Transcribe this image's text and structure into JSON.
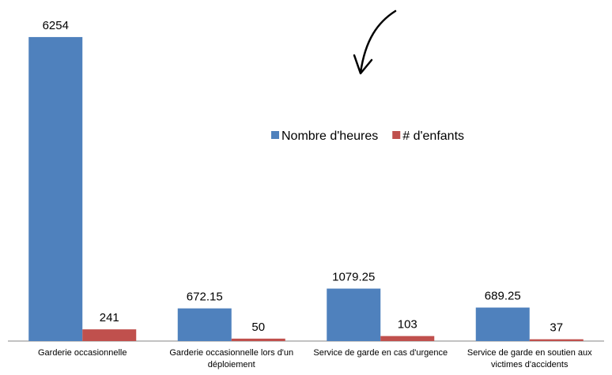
{
  "chart_data": {
    "type": "bar",
    "categories": [
      "Garderie occasionnelle",
      "Garderie occasionnelle lors d'un déploiement",
      "Service de garde en cas d'urgence",
      "Service de garde en soutien aux victimes d'accidents"
    ],
    "series": [
      {
        "name": "Nombre d'heures",
        "color": "#4f81bd",
        "values": [
          6254,
          672.15,
          1079.25,
          689.25
        ]
      },
      {
        "name": "# d'enfants",
        "color": "#c0504d",
        "values": [
          241,
          50,
          103,
          37
        ]
      }
    ],
    "ylim": [
      0,
      7000
    ]
  }
}
